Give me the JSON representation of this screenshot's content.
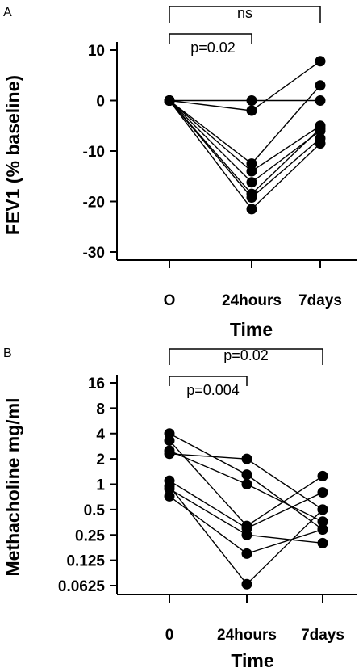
{
  "chart_data": [
    {
      "type": "scatter",
      "panel_label": "A",
      "ylabel": "FEV1 (% baseline)",
      "xlabel": "Time",
      "categories": [
        "O",
        "24hours",
        "7days"
      ],
      "ylim": [
        -30,
        10
      ],
      "yticks": [
        10,
        0,
        -10,
        -20,
        -30
      ],
      "annotations": [
        {
          "text": "ns",
          "from": 0,
          "to": 2,
          "level": 1
        },
        {
          "text": "p=0.02",
          "from": 0,
          "to": 1,
          "level": 0
        }
      ],
      "series": [
        {
          "values": [
            0,
            0,
            0
          ]
        },
        {
          "values": [
            0,
            -2,
            7.8
          ]
        },
        {
          "values": [
            0,
            -12.5,
            3
          ]
        },
        {
          "values": [
            0,
            -14,
            -5
          ]
        },
        {
          "values": [
            0,
            -16.2,
            -6
          ]
        },
        {
          "values": [
            0,
            -18.5,
            -5.5
          ]
        },
        {
          "values": [
            0,
            -19.2,
            -7.5
          ]
        },
        {
          "values": [
            0,
            -21.5,
            -8.5
          ]
        }
      ]
    },
    {
      "type": "scatter",
      "panel_label": "B",
      "ylabel": "Methacholine  mg/ml",
      "xlabel": "Time",
      "categories": [
        "0",
        "24hours",
        "7days"
      ],
      "yscale": "log2",
      "ylim": [
        0.0625,
        16
      ],
      "yticks": [
        16,
        8,
        4,
        2,
        1,
        0.5,
        0.25,
        0.125,
        0.0625
      ],
      "ytick_labels": [
        "16",
        "8",
        "4",
        "2",
        "1",
        "0.5",
        "0.25",
        "0.125",
        "0.0625"
      ],
      "annotations": [
        {
          "text": "p=0.02",
          "from": 0,
          "to": 2,
          "level": 1
        },
        {
          "text": "p=0.004",
          "from": 0,
          "to": 1,
          "level": 0
        }
      ],
      "series": [
        {
          "values": [
            4,
            1.3,
            0.29
          ]
        },
        {
          "values": [
            3.3,
            0.32,
            1.25
          ]
        },
        {
          "values": [
            2.5,
            1,
            0.36
          ]
        },
        {
          "values": [
            2.3,
            2,
            0.5
          ]
        },
        {
          "values": [
            1.1,
            0.3,
            0.8
          ]
        },
        {
          "values": [
            0.95,
            0.065,
            0.5
          ]
        },
        {
          "values": [
            0.88,
            0.25,
            0.2
          ]
        },
        {
          "values": [
            0.72,
            0.15,
            0.29
          ]
        }
      ]
    }
  ]
}
